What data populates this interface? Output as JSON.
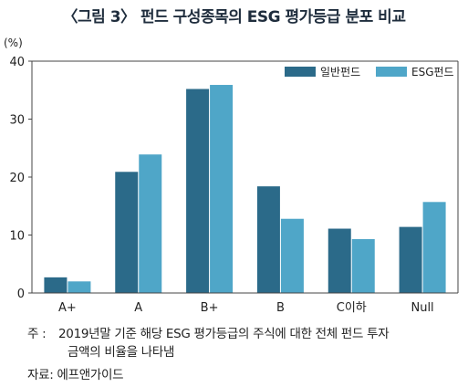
{
  "title": "〈그림 3〉 펀드 구성종목의 ESG 평가등급 분포 비교",
  "colors": {
    "series1": "#2b6a89",
    "series2": "#4fa6c8",
    "axis": "#444444",
    "grid": "#bbbbbb"
  },
  "chart_data": {
    "type": "bar",
    "unit_label": "(%)",
    "categories": [
      "A+",
      "A",
      "B+",
      "B",
      "C이하",
      "Null"
    ],
    "series": [
      {
        "name": "일반펀드",
        "values": [
          2.7,
          20.9,
          35.2,
          18.4,
          11.1,
          11.4
        ]
      },
      {
        "name": "ESG펀드",
        "values": [
          2.0,
          23.9,
          35.9,
          12.8,
          9.3,
          15.7
        ]
      }
    ],
    "ylim": [
      0,
      40
    ],
    "yticks": [
      0,
      10,
      20,
      30,
      40
    ],
    "legend_position": "top-right"
  },
  "note": {
    "label": "주 :",
    "line1": "2019년말 기준 해당 ESG 평가등급의 주식에 대한 전체 펀드 투자",
    "line2": "금액의 비율을 나타냄"
  },
  "source": "자료: 에프앤가이드"
}
